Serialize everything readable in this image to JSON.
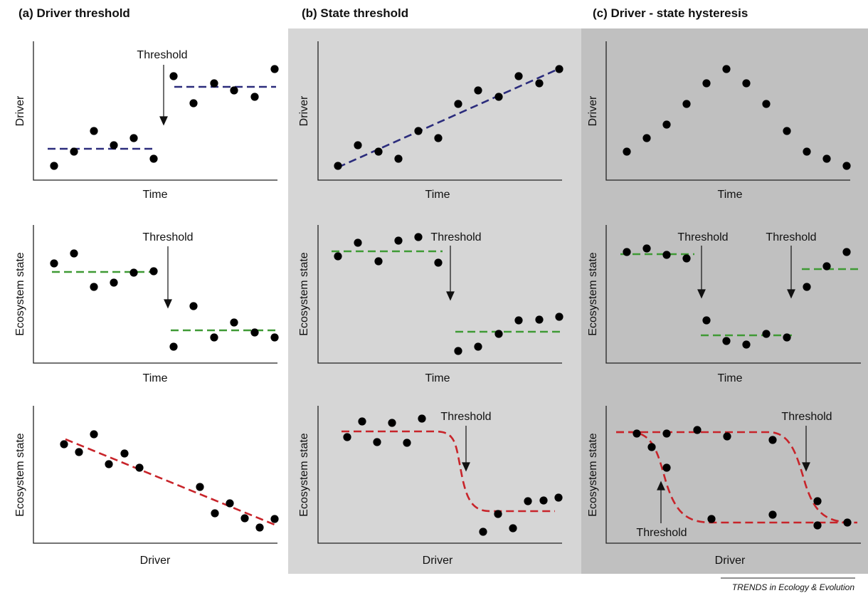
{
  "columns": [
    {
      "title": "(a) Driver threshold",
      "bg": "#ffffff"
    },
    {
      "title": "(b) State threshold",
      "bg": "#d6d6d6"
    },
    {
      "title": "(c) Driver - state hysteresis",
      "bg": "#c0c0c0"
    }
  ],
  "labels": {
    "time": "Time",
    "driver": "Driver",
    "ecosystem_state": "Ecosystem state",
    "threshold": "Threshold"
  },
  "credit": "TRENDS in Ecology & Evolution",
  "colors": {
    "blue_line": "#2b2c7c",
    "green_line": "#3f9a35",
    "red_line": "#c8242a",
    "points": "#000000",
    "axis": "#222222"
  }
}
